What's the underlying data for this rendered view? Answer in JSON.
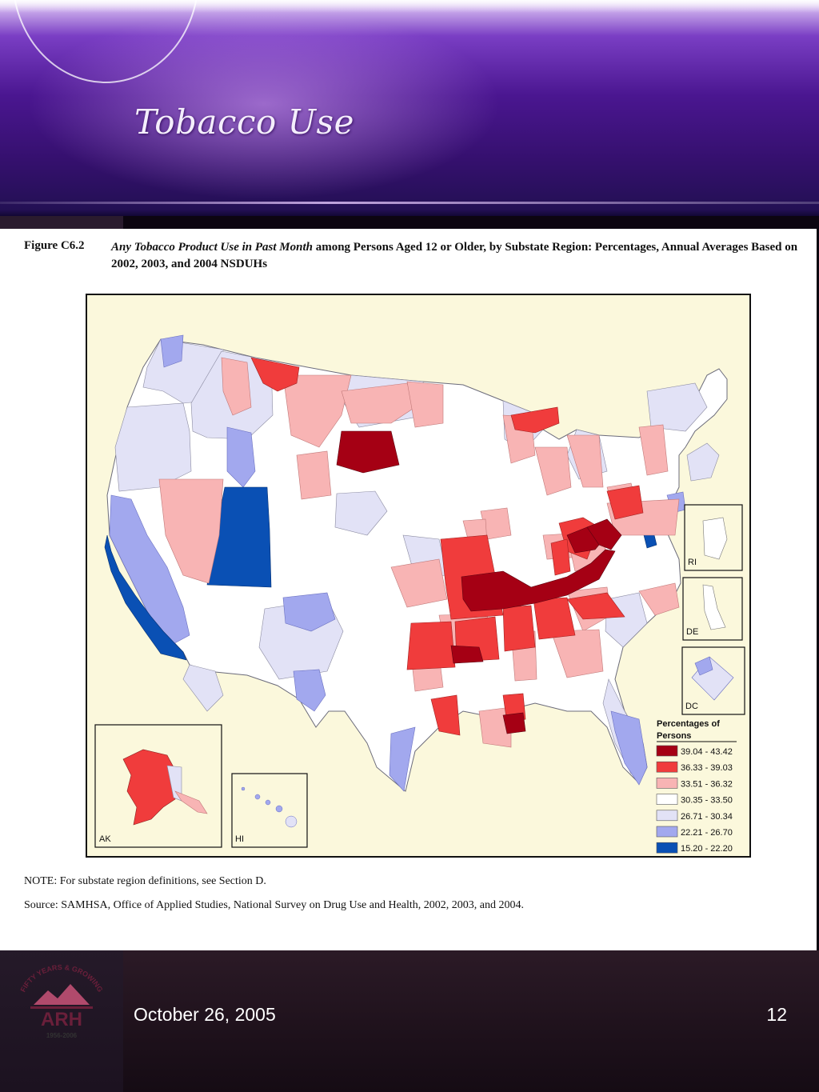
{
  "slide": {
    "title": "Tobacco Use",
    "date": "October 26, 2005",
    "page_number": "12"
  },
  "figure": {
    "label": "Figure C6.2",
    "caption_italic": "Any Tobacco Product Use in Past Month",
    "caption_rest": " among Persons Aged 12 or Older, by Substate Region: Percentages, Annual Averages Based on 2002, 2003, and 2004 NSDUHs",
    "note": "NOTE: For substate region definitions, see Section D.",
    "source": "Source: SAMHSA, Office of Applied Studies, National Survey on Drug Use and Health, 2002, 2003, and 2004."
  },
  "map": {
    "insets": {
      "alaska": "AK",
      "hawaii": "HI",
      "rhode_island": "RI",
      "delaware": "DE",
      "dc": "DC"
    },
    "legend": {
      "title_line1": "Percentages of",
      "title_line2": "Persons",
      "classes": [
        {
          "label": "39.04 - 43.42",
          "color": "#a50014"
        },
        {
          "label": "36.33 - 39.03",
          "color": "#f03c3c"
        },
        {
          "label": "33.51 - 36.32",
          "color": "#f8b4b4"
        },
        {
          "label": "30.35 - 33.50",
          "color": "#ffffff"
        },
        {
          "label": "26.71 - 30.34",
          "color": "#e2e2f6"
        },
        {
          "label": "22.21 - 26.70",
          "color": "#a2a8ee"
        },
        {
          "label": "15.20 - 22.20",
          "color": "#0a50b4"
        }
      ]
    }
  },
  "logo": {
    "arc_text": "FIFTY YEARS & GROWING",
    "name": "ARH",
    "years": "1956-2006"
  },
  "colors": {
    "header_purple": "#4a1690",
    "figure_bg": "#ffffff",
    "map_bg": "#fbf8dc"
  }
}
